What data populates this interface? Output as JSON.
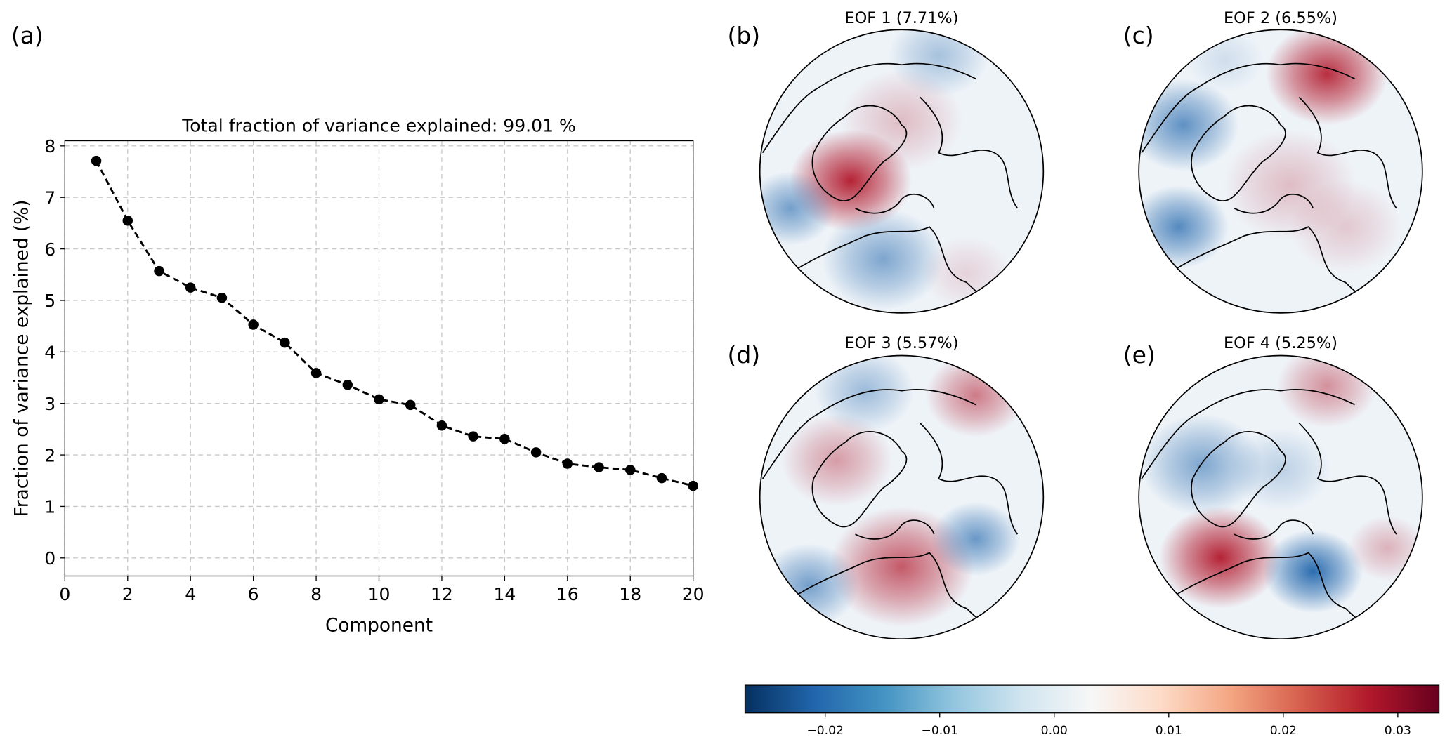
{
  "panel_labels": {
    "a": "(a)",
    "b": "(b)",
    "c": "(c)",
    "d": "(d)",
    "e": "(e)"
  },
  "chart_data": [
    {
      "type": "line",
      "title": "Total fraction of variance explained: 99.01 %",
      "xlabel": "Component",
      "ylabel": "Fraction of variance explained (%)",
      "xlim": [
        0,
        20
      ],
      "ylim": [
        -0.35,
        8.1
      ],
      "xticks": [
        0,
        2,
        4,
        6,
        8,
        10,
        12,
        14,
        16,
        18,
        20
      ],
      "yticks": [
        0,
        1,
        2,
        3,
        4,
        5,
        6,
        7,
        8
      ],
      "grid": true,
      "line_style": "dashed",
      "marker": "circle",
      "color": "#000000",
      "x": [
        1,
        2,
        3,
        4,
        5,
        6,
        7,
        8,
        9,
        10,
        11,
        12,
        13,
        14,
        15,
        16,
        17,
        18,
        19,
        20
      ],
      "y": [
        7.71,
        6.55,
        5.57,
        5.25,
        5.05,
        4.53,
        4.18,
        3.59,
        3.36,
        3.08,
        2.97,
        2.57,
        2.36,
        2.31,
        2.05,
        1.83,
        1.76,
        1.71,
        1.55,
        1.4
      ]
    },
    {
      "type": "heatmap",
      "projection": "north polar stereographic",
      "colormap": "RdBu_r",
      "maps": [
        {
          "title": "EOF 1 (7.71%)"
        },
        {
          "title": "EOF 2 (6.55%)"
        },
        {
          "title": "EOF 3 (5.57%)"
        },
        {
          "title": "EOF 4 (5.25%)"
        }
      ],
      "colorbar": {
        "range": [
          -0.027,
          0.0336
        ],
        "ticks": [
          -0.02,
          -0.01,
          0.0,
          0.01,
          0.02,
          0.03
        ],
        "tick_labels": [
          "−0.02",
          "−0.01",
          "0.00",
          "0.01",
          "0.02",
          "0.03"
        ],
        "colors": [
          "#053061",
          "#2166ac",
          "#4393c3",
          "#92c5de",
          "#d1e5f0",
          "#f7f7f7",
          "#fddbc7",
          "#f4a582",
          "#d6604d",
          "#b2182b",
          "#67001f"
        ]
      }
    }
  ]
}
